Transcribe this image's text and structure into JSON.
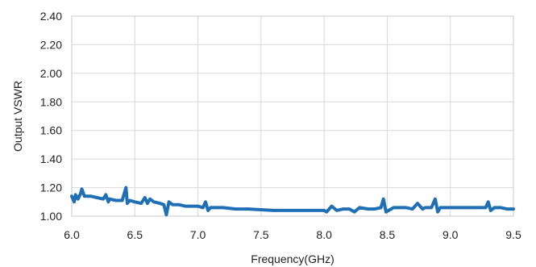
{
  "chart_data": {
    "type": "line",
    "xlabel": "Frequency(GHz)",
    "ylabel": "Output VSWR",
    "xlim": [
      6.0,
      9.5
    ],
    "ylim": [
      1.0,
      2.4
    ],
    "xticks": [
      "6.0",
      "6.5",
      "7.0",
      "7.5",
      "8.0",
      "8.5",
      "9.0",
      "9.5"
    ],
    "yticks": [
      "1.00",
      "1.20",
      "1.40",
      "1.60",
      "1.80",
      "2.00",
      "2.20",
      "2.40"
    ],
    "grid": true,
    "legend": "none",
    "series": [
      {
        "color": "#1F6FB5",
        "x": [
          6.0,
          6.02,
          6.03,
          6.05,
          6.07,
          6.08,
          6.1,
          6.15,
          6.2,
          6.25,
          6.27,
          6.29,
          6.3,
          6.35,
          6.4,
          6.43,
          6.44,
          6.46,
          6.5,
          6.55,
          6.58,
          6.6,
          6.62,
          6.65,
          6.7,
          6.73,
          6.75,
          6.77,
          6.8,
          6.85,
          6.9,
          6.95,
          7.0,
          7.04,
          7.06,
          7.08,
          7.1,
          7.2,
          7.3,
          7.4,
          7.5,
          7.6,
          7.7,
          7.8,
          7.9,
          8.0,
          8.02,
          8.06,
          8.1,
          8.15,
          8.2,
          8.24,
          8.28,
          8.35,
          8.4,
          8.45,
          8.47,
          8.49,
          8.55,
          8.6,
          8.65,
          8.7,
          8.74,
          8.78,
          8.8,
          8.85,
          8.88,
          8.9,
          8.92,
          8.95,
          9.0,
          9.1,
          9.2,
          9.28,
          9.3,
          9.32,
          9.35,
          9.4,
          9.45,
          9.5
        ],
        "y": [
          1.14,
          1.1,
          1.15,
          1.12,
          1.16,
          1.19,
          1.14,
          1.14,
          1.13,
          1.12,
          1.15,
          1.1,
          1.12,
          1.11,
          1.11,
          1.2,
          1.09,
          1.11,
          1.1,
          1.09,
          1.13,
          1.09,
          1.12,
          1.1,
          1.09,
          1.08,
          1.01,
          1.1,
          1.08,
          1.08,
          1.07,
          1.07,
          1.07,
          1.06,
          1.1,
          1.04,
          1.06,
          1.06,
          1.05,
          1.05,
          1.045,
          1.04,
          1.04,
          1.04,
          1.04,
          1.04,
          1.03,
          1.07,
          1.04,
          1.05,
          1.05,
          1.03,
          1.06,
          1.05,
          1.05,
          1.06,
          1.12,
          1.03,
          1.06,
          1.06,
          1.06,
          1.05,
          1.09,
          1.05,
          1.06,
          1.06,
          1.12,
          1.03,
          1.06,
          1.06,
          1.06,
          1.06,
          1.06,
          1.06,
          1.1,
          1.04,
          1.06,
          1.06,
          1.05,
          1.05
        ]
      }
    ]
  }
}
